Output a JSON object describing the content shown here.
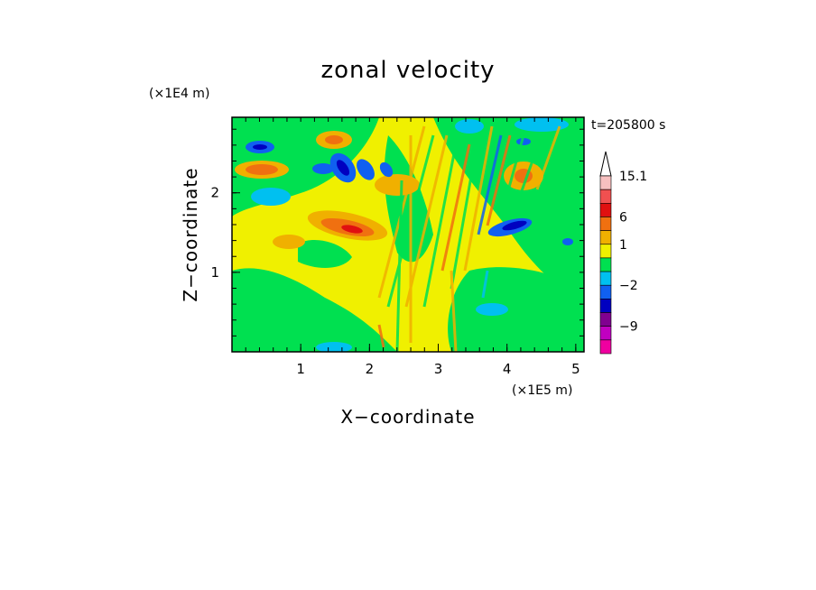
{
  "chart_data": {
    "type": "heatmap",
    "title": "zonal velocity",
    "xlabel": "X−coordinate",
    "ylabel": "Z−coordinate",
    "x_unit": "(×1E5 m)",
    "y_unit": "(×1E4 m)",
    "time_label": "t=205800 s",
    "xlim": [
      0,
      5.12
    ],
    "ylim": [
      0,
      2.95
    ],
    "x_ticks": [
      "1",
      "2",
      "3",
      "4",
      "5"
    ],
    "y_ticks": [
      "1",
      "2"
    ],
    "colorbar": {
      "labels": [
        "15.1",
        "6",
        "1",
        "−2",
        "−9"
      ],
      "levels": [
        "15.1",
        "11",
        "6",
        "3",
        "1",
        "0",
        "−1",
        "−2",
        "−4",
        "−6",
        "−9",
        "−12"
      ],
      "colors": [
        "#f7c0c0",
        "#f05050",
        "#e01010",
        "#f07010",
        "#f0b000",
        "#f0f000",
        "#00e050",
        "#00c0f0",
        "#1060f0",
        "#0000c0",
        "#800090",
        "#c000c0",
        "#f000a0"
      ]
    },
    "features": [
      {
        "x": 0.45,
        "z": 2.58,
        "u": -6
      },
      {
        "x": 1.25,
        "z": 2.35,
        "u": -6
      },
      {
        "x": 1.55,
        "z": 2.35,
        "u": -6
      },
      {
        "x": 1.85,
        "z": 2.3,
        "u": -4
      },
      {
        "x": 4.15,
        "z": 1.55,
        "u": -6
      },
      {
        "x": 4.9,
        "z": 1.4,
        "u": -4
      },
      {
        "x": 3.8,
        "z": 2.6,
        "u": -2
      },
      {
        "x": 0.6,
        "z": 1.95,
        "u": -2
      },
      {
        "x": 3.7,
        "z": 0.6,
        "u": -2
      },
      {
        "x": 0.4,
        "z": 2.25,
        "u": 1
      },
      {
        "x": 1.2,
        "z": 1.65,
        "u": 3
      },
      {
        "x": 1.6,
        "z": 1.55,
        "u": 6
      },
      {
        "x": 1.4,
        "z": 2.7,
        "u": 3
      },
      {
        "x": 2.6,
        "z": 1.85,
        "u": 3
      },
      {
        "x": 4.45,
        "z": 2.3,
        "u": 3
      },
      {
        "x": 0.85,
        "z": 0.85,
        "u": 1
      },
      {
        "x": 3.2,
        "z": 0.85,
        "u": 1
      },
      {
        "x": 2.0,
        "z": 1.1,
        "u": 1
      },
      {
        "x": 2.3,
        "z": 0.2,
        "u": 1
      },
      {
        "x": 4.5,
        "z": 0.5,
        "u": 1
      }
    ]
  }
}
